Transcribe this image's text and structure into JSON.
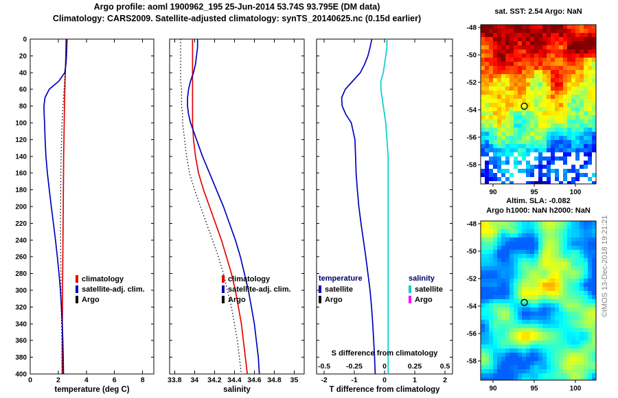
{
  "header": {
    "title": "Argo profile: aoml 1900962_195 25-Jun-2014 53.74S 93.795E (DM data)",
    "subtitle": "Climatology: CARS2009. Satellite-adjusted climatology: synTS_20140625.nc (0.15d earlier)"
  },
  "watermark": "©IMOS 13-Dec-2018 19:21:21",
  "depth_axis": {
    "min": 0,
    "max": 400,
    "ticks": [
      0,
      20,
      40,
      60,
      80,
      100,
      120,
      140,
      160,
      180,
      200,
      220,
      240,
      260,
      280,
      300,
      320,
      340,
      360,
      380,
      400
    ]
  },
  "chart_data": [
    {
      "id": "temperature",
      "type": "line",
      "orientation": "vertical-profile",
      "xlabel": "temperature (deg C)",
      "xlim": [
        0,
        8.8
      ],
      "xticks": [
        0,
        2,
        4,
        6,
        8
      ],
      "xtick_labels": [
        "0",
        "2",
        "4",
        "6",
        "8"
      ],
      "show_depth_labels": true,
      "depths": [
        0,
        10,
        20,
        30,
        40,
        50,
        60,
        70,
        80,
        90,
        100,
        120,
        140,
        160,
        180,
        200,
        220,
        240,
        260,
        280,
        300,
        320,
        340,
        360,
        380,
        400
      ],
      "series": [
        {
          "name": "climatology",
          "color": "#e60000",
          "width": 1.7,
          "values": [
            2.55,
            2.54,
            2.53,
            2.52,
            2.5,
            2.48,
            2.47,
            2.45,
            2.44,
            2.43,
            2.42,
            2.4,
            2.38,
            2.37,
            2.36,
            2.35,
            2.34,
            2.33,
            2.32,
            2.31,
            2.3,
            2.3,
            2.29,
            2.29,
            2.28,
            2.28
          ]
        },
        {
          "name": "satellite-adj. clim.",
          "color": "#0000bb",
          "width": 1.7,
          "values": [
            2.62,
            2.6,
            2.58,
            2.54,
            2.46,
            2.05,
            1.35,
            1.05,
            0.98,
            0.99,
            1.02,
            1.06,
            1.12,
            1.22,
            1.36,
            1.5,
            1.65,
            1.8,
            1.93,
            2.05,
            2.15,
            2.22,
            2.28,
            2.32,
            2.35,
            2.37
          ]
        },
        {
          "name": "Argo",
          "color": "#000000",
          "width": 1.3,
          "dash": "1.5 3",
          "values": [
            2.58,
            2.57,
            2.55,
            2.52,
            2.49,
            2.45,
            2.41,
            2.37,
            2.33,
            2.3,
            2.27,
            2.23,
            2.2,
            2.18,
            2.17,
            2.16,
            2.16,
            2.16,
            2.17,
            2.18,
            2.19,
            2.21,
            2.23,
            2.25,
            2.26,
            2.28
          ]
        }
      ],
      "legend": [
        {
          "label": "climatology",
          "color": "#e60000"
        },
        {
          "label": "satellite-adj. clim.",
          "color": "#0000bb"
        },
        {
          "label": "Argo",
          "color": "#000000"
        }
      ]
    },
    {
      "id": "salinity",
      "type": "line",
      "orientation": "vertical-profile",
      "xlabel": "salinity",
      "xlim": [
        33.75,
        35.1
      ],
      "xticks": [
        33.8,
        34,
        34.2,
        34.4,
        34.6,
        34.8,
        35
      ],
      "xtick_labels": [
        "33.8",
        "34",
        "34.2",
        "34.4",
        "34.6",
        "34.8",
        "35"
      ],
      "show_depth_labels": false,
      "depths": [
        0,
        10,
        20,
        30,
        40,
        50,
        60,
        70,
        80,
        90,
        100,
        120,
        140,
        160,
        180,
        200,
        220,
        240,
        260,
        280,
        300,
        320,
        340,
        360,
        380,
        400
      ],
      "series": [
        {
          "name": "climatology",
          "color": "#e60000",
          "width": 1.7,
          "values": [
            33.98,
            33.98,
            33.98,
            33.98,
            33.98,
            33.98,
            33.98,
            33.98,
            33.98,
            33.98,
            33.98,
            33.99,
            34.01,
            34.04,
            34.09,
            34.15,
            34.21,
            34.27,
            34.32,
            34.37,
            34.41,
            34.44,
            34.47,
            34.49,
            34.51,
            34.53
          ]
        },
        {
          "name": "satellite-adj. clim.",
          "color": "#0000bb",
          "width": 1.7,
          "values": [
            34.03,
            34.03,
            34.02,
            34.01,
            33.99,
            33.96,
            33.94,
            33.93,
            33.93,
            33.94,
            33.96,
            34.02,
            34.08,
            34.15,
            34.22,
            34.29,
            34.35,
            34.41,
            34.46,
            34.5,
            34.54,
            34.57,
            34.6,
            34.62,
            34.64,
            34.65
          ]
        },
        {
          "name": "Argo",
          "color": "#000000",
          "width": 1.3,
          "dash": "1.5 3",
          "values": [
            33.86,
            33.86,
            33.86,
            33.86,
            33.86,
            33.86,
            33.87,
            33.87,
            33.87,
            33.88,
            33.88,
            33.9,
            33.92,
            33.95,
            34.0,
            34.06,
            34.12,
            34.18,
            34.24,
            34.29,
            34.33,
            34.37,
            34.4,
            34.43,
            34.45,
            34.47
          ]
        }
      ],
      "legend": [
        {
          "label": "climatology",
          "color": "#e60000"
        },
        {
          "label": "satellite-adj. clim.",
          "color": "#0000bb"
        },
        {
          "label": "Argo",
          "color": "#000000"
        }
      ]
    },
    {
      "id": "difference",
      "type": "line",
      "orientation": "vertical-profile",
      "xlabel": "T difference from climatology",
      "xlim": [
        -2.25,
        2.25
      ],
      "xticks": [
        -2,
        -1,
        0,
        1,
        2
      ],
      "xtick_labels": [
        "-2",
        "-1",
        "0",
        "1",
        "2"
      ],
      "show_depth_labels": false,
      "secondary_axis": {
        "label": "S difference from climatology",
        "tick_positions": [
          -2,
          -1,
          0,
          1,
          2
        ],
        "tick_labels": [
          "-0.5",
          "-0.25",
          "0",
          "0.25",
          "0.5"
        ],
        "scale": 4
      },
      "depths": [
        0,
        10,
        20,
        30,
        40,
        50,
        60,
        70,
        80,
        90,
        100,
        120,
        140,
        160,
        180,
        200,
        220,
        240,
        260,
        280,
        300,
        320,
        340,
        360,
        380,
        400
      ],
      "series": [
        {
          "name": "temperature satellite minus climatology",
          "color": "#0000bb",
          "width": 1.7,
          "values": [
            -0.42,
            -0.48,
            -0.55,
            -0.66,
            -0.8,
            -1.05,
            -1.3,
            -1.42,
            -1.4,
            -1.28,
            -1.1,
            -0.98,
            -0.96,
            -0.94,
            -0.9,
            -0.85,
            -0.78,
            -0.7,
            -0.62,
            -0.55,
            -0.48,
            -0.43,
            -0.39,
            -0.36,
            -0.33,
            -0.31
          ]
        },
        {
          "name": "salinity satellite minus climatology",
          "color": "#00cfcf",
          "width": 1.7,
          "scale": 4,
          "values": [
            0.02,
            0.02,
            0.01,
            0.0,
            -0.01,
            -0.03,
            -0.03,
            -0.02,
            -0.01,
            0.0,
            0.01,
            0.02,
            0.03,
            0.03,
            0.03,
            0.03,
            0.03,
            0.03,
            0.03,
            0.03,
            0.03,
            0.03,
            0.03,
            0.03,
            0.03,
            0.03
          ]
        }
      ],
      "legend_groups": [
        {
          "header": "temperature",
          "items": [
            {
              "label": "satellite",
              "color": "#0000bb"
            },
            {
              "label": "Argo",
              "color": "#000000"
            }
          ]
        },
        {
          "header": "salinity",
          "items": [
            {
              "label": "satellite",
              "color": "#00cfcf"
            },
            {
              "label": "Argo",
              "color": "#ff00ff"
            }
          ]
        }
      ]
    },
    {
      "id": "sst_map",
      "type": "heatmap",
      "title": "sat. SST: 2.54 Argo: NaN",
      "lon_range": [
        88.5,
        102.5
      ],
      "lat_range": [
        -59.4,
        -47.8
      ],
      "lon_ticks": [
        90,
        95,
        100
      ],
      "lat_ticks": [
        -48,
        -50,
        -52,
        -54,
        -56,
        -58
      ],
      "marker": {
        "lon": 93.795,
        "lat": -53.74
      },
      "style": {
        "pattern": "sst",
        "seed": 7,
        "colormap": "jet",
        "description": "warm red/orange north grading to green then cyan/blue south, white missing data near southern edge"
      }
    },
    {
      "id": "sla_map",
      "type": "heatmap",
      "title": "Altim. SLA: -0.082",
      "subtitle": "Argo h1000: NaN h2000: NaN",
      "lon_range": [
        88.5,
        102.5
      ],
      "lat_range": [
        -59.4,
        -47.8
      ],
      "lon_ticks": [
        90,
        95,
        100
      ],
      "lat_ticks": [
        -48,
        -50,
        -52,
        -54,
        -56,
        -58
      ],
      "marker": {
        "lon": 93.795,
        "lat": -53.74
      },
      "style": {
        "pattern": "sla",
        "seed": 13,
        "colormap": "jet",
        "description": "green field with yellow highs and cyan lows"
      }
    }
  ]
}
